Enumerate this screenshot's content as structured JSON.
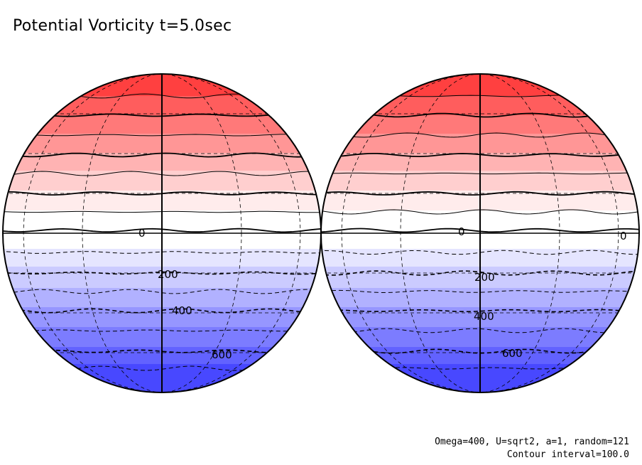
{
  "title": "Potential Vorticity t=5.0sec",
  "params": {
    "line1": "Omega=400, U=sqrt2, a=1, random=121",
    "line2": "Contour interval=100.0"
  },
  "colors": {
    "positive_max": "#ff4040",
    "zero": "#ffffff",
    "negative_max": "#4848ff",
    "contour": "#000000"
  },
  "contour_labels": {
    "left": [
      "0",
      "200",
      "400",
      "600"
    ],
    "right": [
      "0",
      "0",
      "200",
      "400",
      "600"
    ]
  }
}
